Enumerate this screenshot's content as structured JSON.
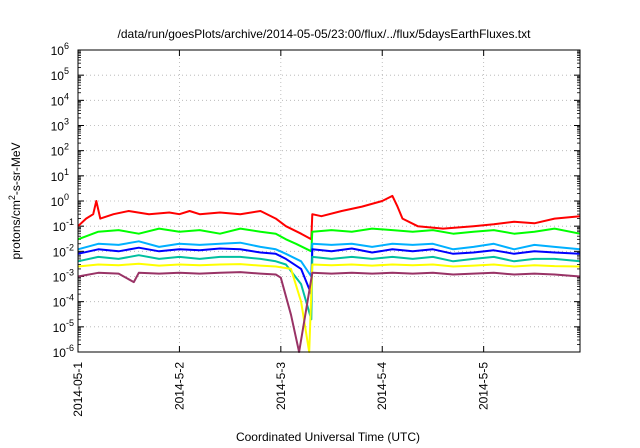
{
  "chart_data": {
    "type": "line",
    "title": "/data/run/goesPlots/archive/2014-05-05/23:00/flux/../flux/5daysEarthFluxes.txt",
    "xlabel": "Coordinated Universal Time (UTC)",
    "ylabel_parts": [
      "protons/cm",
      "2",
      "-s-sr-MeV"
    ],
    "x_range_days": [
      0,
      4.95
    ],
    "x_ticks": [
      {
        "day": 0,
        "label": "2014-05-1"
      },
      {
        "day": 1,
        "label": "2014-5-2"
      },
      {
        "day": 2,
        "label": "2014-5-3"
      },
      {
        "day": 3,
        "label": "2014-5-4"
      },
      {
        "day": 4,
        "label": "2014-5-5"
      }
    ],
    "y_scale": "log",
    "y_range_exp": [
      -6,
      6
    ],
    "y_ticks": [
      {
        "base": "10",
        "exp": "6"
      },
      {
        "base": "10",
        "exp": "5"
      },
      {
        "base": "10",
        "exp": "4"
      },
      {
        "base": "10",
        "exp": "3"
      },
      {
        "base": "10",
        "exp": "2"
      },
      {
        "base": "10",
        "exp": "1"
      },
      {
        "base": "10",
        "exp": "0"
      },
      {
        "base": "10",
        "exp": "-1"
      },
      {
        "base": "10",
        "exp": "-2"
      },
      {
        "base": "10",
        "exp": "-3"
      },
      {
        "base": "10",
        "exp": "-4"
      },
      {
        "base": "10",
        "exp": "-5"
      },
      {
        "base": "10",
        "exp": "-6"
      }
    ],
    "grid": true,
    "series": [
      {
        "color": "#ff0000",
        "points": [
          [
            0,
            0.1
          ],
          [
            0.08,
            0.2
          ],
          [
            0.15,
            0.3
          ],
          [
            0.18,
            1.0
          ],
          [
            0.22,
            0.2
          ],
          [
            0.35,
            0.3
          ],
          [
            0.5,
            0.4
          ],
          [
            0.7,
            0.3
          ],
          [
            0.9,
            0.35
          ],
          [
            1.0,
            0.3
          ],
          [
            1.1,
            0.4
          ],
          [
            1.2,
            0.3
          ],
          [
            1.4,
            0.35
          ],
          [
            1.6,
            0.3
          ],
          [
            1.8,
            0.4
          ],
          [
            1.95,
            0.2
          ],
          [
            2.05,
            0.1
          ],
          [
            2.2,
            0.05
          ],
          [
            2.3,
            0.03
          ],
          [
            2.31,
            0.3
          ],
          [
            2.4,
            0.25
          ],
          [
            2.6,
            0.4
          ],
          [
            2.8,
            0.6
          ],
          [
            3.0,
            1.0
          ],
          [
            3.1,
            1.6
          ],
          [
            3.15,
            0.6
          ],
          [
            3.2,
            0.2
          ],
          [
            3.35,
            0.1
          ],
          [
            3.6,
            0.08
          ],
          [
            3.9,
            0.1
          ],
          [
            4.1,
            0.12
          ],
          [
            4.3,
            0.15
          ],
          [
            4.5,
            0.13
          ],
          [
            4.7,
            0.2
          ],
          [
            4.95,
            0.25
          ]
        ]
      },
      {
        "color": "#00ff00",
        "points": [
          [
            0,
            0.03
          ],
          [
            0.2,
            0.06
          ],
          [
            0.4,
            0.07
          ],
          [
            0.6,
            0.05
          ],
          [
            0.8,
            0.08
          ],
          [
            1.0,
            0.06
          ],
          [
            1.2,
            0.07
          ],
          [
            1.4,
            0.05
          ],
          [
            1.6,
            0.08
          ],
          [
            1.8,
            0.06
          ],
          [
            1.95,
            0.05
          ],
          [
            2.05,
            0.03
          ],
          [
            2.15,
            0.02
          ],
          [
            2.3,
            0.01
          ],
          [
            2.31,
            0.06
          ],
          [
            2.5,
            0.07
          ],
          [
            2.7,
            0.06
          ],
          [
            2.9,
            0.08
          ],
          [
            3.1,
            0.07
          ],
          [
            3.3,
            0.06
          ],
          [
            3.5,
            0.07
          ],
          [
            3.7,
            0.05
          ],
          [
            3.9,
            0.06
          ],
          [
            4.1,
            0.07
          ],
          [
            4.3,
            0.05
          ],
          [
            4.5,
            0.06
          ],
          [
            4.7,
            0.08
          ],
          [
            4.95,
            0.05
          ]
        ]
      },
      {
        "color": "#00b0ff",
        "points": [
          [
            0,
            0.012
          ],
          [
            0.2,
            0.02
          ],
          [
            0.4,
            0.018
          ],
          [
            0.6,
            0.025
          ],
          [
            0.8,
            0.015
          ],
          [
            1.0,
            0.02
          ],
          [
            1.2,
            0.018
          ],
          [
            1.4,
            0.02
          ],
          [
            1.6,
            0.022
          ],
          [
            1.8,
            0.015
          ],
          [
            1.95,
            0.012
          ],
          [
            2.05,
            0.008
          ],
          [
            2.2,
            0.004
          ],
          [
            2.3,
            0.001
          ],
          [
            2.31,
            0.02
          ],
          [
            2.5,
            0.018
          ],
          [
            2.7,
            0.02
          ],
          [
            2.9,
            0.015
          ],
          [
            3.1,
            0.02
          ],
          [
            3.3,
            0.018
          ],
          [
            3.5,
            0.02
          ],
          [
            3.7,
            0.012
          ],
          [
            3.9,
            0.015
          ],
          [
            4.1,
            0.02
          ],
          [
            4.3,
            0.012
          ],
          [
            4.5,
            0.018
          ],
          [
            4.7,
            0.015
          ],
          [
            4.95,
            0.012
          ]
        ]
      },
      {
        "color": "#0000ff",
        "points": [
          [
            0,
            0.008
          ],
          [
            0.2,
            0.012
          ],
          [
            0.4,
            0.01
          ],
          [
            0.6,
            0.014
          ],
          [
            0.8,
            0.01
          ],
          [
            1.0,
            0.012
          ],
          [
            1.2,
            0.011
          ],
          [
            1.4,
            0.013
          ],
          [
            1.6,
            0.012
          ],
          [
            1.8,
            0.009
          ],
          [
            1.95,
            0.008
          ],
          [
            2.05,
            0.005
          ],
          [
            2.2,
            0.002
          ],
          [
            2.3,
            0.0002
          ],
          [
            2.31,
            0.012
          ],
          [
            2.5,
            0.01
          ],
          [
            2.7,
            0.013
          ],
          [
            2.9,
            0.009
          ],
          [
            3.1,
            0.012
          ],
          [
            3.3,
            0.01
          ],
          [
            3.5,
            0.012
          ],
          [
            3.7,
            0.008
          ],
          [
            3.9,
            0.009
          ],
          [
            4.1,
            0.011
          ],
          [
            4.3,
            0.008
          ],
          [
            4.5,
            0.01
          ],
          [
            4.7,
            0.009
          ],
          [
            4.95,
            0.008
          ]
        ]
      },
      {
        "color": "#00c0a0",
        "points": [
          [
            0,
            0.004
          ],
          [
            0.2,
            0.006
          ],
          [
            0.4,
            0.005
          ],
          [
            0.6,
            0.007
          ],
          [
            0.8,
            0.005
          ],
          [
            1.0,
            0.006
          ],
          [
            1.2,
            0.005
          ],
          [
            1.4,
            0.006
          ],
          [
            1.6,
            0.006
          ],
          [
            1.8,
            0.005
          ],
          [
            1.95,
            0.004
          ],
          [
            2.05,
            0.003
          ],
          [
            2.2,
            0.0005
          ],
          [
            2.3,
            2e-05
          ],
          [
            2.31,
            0.006
          ],
          [
            2.5,
            0.005
          ],
          [
            2.7,
            0.006
          ],
          [
            2.9,
            0.005
          ],
          [
            3.1,
            0.006
          ],
          [
            3.3,
            0.005
          ],
          [
            3.5,
            0.006
          ],
          [
            3.7,
            0.004
          ],
          [
            3.9,
            0.005
          ],
          [
            4.1,
            0.006
          ],
          [
            4.3,
            0.004
          ],
          [
            4.5,
            0.005
          ],
          [
            4.7,
            0.005
          ],
          [
            4.95,
            0.004
          ]
        ]
      },
      {
        "color": "#ffff00",
        "points": [
          [
            0,
            0.0025
          ],
          [
            0.2,
            0.003
          ],
          [
            0.4,
            0.0028
          ],
          [
            0.6,
            0.0032
          ],
          [
            0.8,
            0.0027
          ],
          [
            1.0,
            0.003
          ],
          [
            1.2,
            0.0028
          ],
          [
            1.4,
            0.003
          ],
          [
            1.6,
            0.0031
          ],
          [
            1.8,
            0.0027
          ],
          [
            1.95,
            0.0025
          ],
          [
            2.1,
            0.002
          ],
          [
            2.2,
            0.0001
          ],
          [
            2.28,
            1e-06
          ],
          [
            2.31,
            0.003
          ],
          [
            2.5,
            0.0028
          ],
          [
            2.7,
            0.003
          ],
          [
            2.9,
            0.0027
          ],
          [
            3.1,
            0.003
          ],
          [
            3.3,
            0.0028
          ],
          [
            3.5,
            0.003
          ],
          [
            3.7,
            0.0025
          ],
          [
            3.9,
            0.0027
          ],
          [
            4.1,
            0.003
          ],
          [
            4.3,
            0.0025
          ],
          [
            4.5,
            0.0028
          ],
          [
            4.7,
            0.0026
          ],
          [
            4.95,
            0.0025
          ]
        ]
      },
      {
        "color": "#993366",
        "points": [
          [
            0,
            0.001
          ],
          [
            0.2,
            0.0014
          ],
          [
            0.4,
            0.0013
          ],
          [
            0.55,
            0.0006
          ],
          [
            0.6,
            0.0014
          ],
          [
            0.8,
            0.0013
          ],
          [
            1.0,
            0.0014
          ],
          [
            1.2,
            0.0013
          ],
          [
            1.4,
            0.0014
          ],
          [
            1.6,
            0.0015
          ],
          [
            1.8,
            0.0013
          ],
          [
            1.95,
            0.0012
          ],
          [
            2.0,
            0.0009
          ],
          [
            2.1,
            3e-05
          ],
          [
            2.18,
            1e-06
          ],
          [
            2.31,
            0.0014
          ],
          [
            2.5,
            0.0013
          ],
          [
            2.7,
            0.0014
          ],
          [
            2.9,
            0.0013
          ],
          [
            3.1,
            0.0014
          ],
          [
            3.3,
            0.0013
          ],
          [
            3.5,
            0.0014
          ],
          [
            3.7,
            0.0012
          ],
          [
            3.9,
            0.0013
          ],
          [
            4.1,
            0.0014
          ],
          [
            4.3,
            0.0012
          ],
          [
            4.5,
            0.0013
          ],
          [
            4.7,
            0.0012
          ],
          [
            4.95,
            0.001
          ]
        ]
      }
    ]
  }
}
